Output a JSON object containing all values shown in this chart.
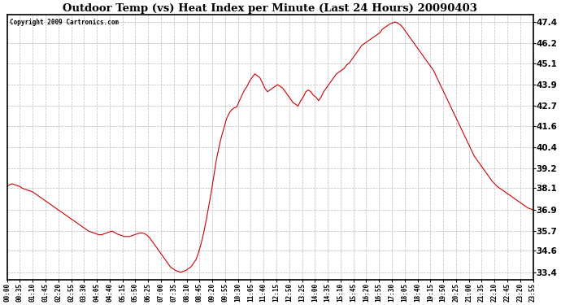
{
  "title": "Outdoor Temp (vs) Heat Index per Minute (Last 24 Hours) 20090403",
  "copyright": "Copyright 2009 Cartronics.com",
  "line_color": "#cc0000",
  "background_color": "#ffffff",
  "grid_color": "#bbbbbb",
  "yticks": [
    33.4,
    34.6,
    35.7,
    36.9,
    38.1,
    39.2,
    40.4,
    41.6,
    42.7,
    43.9,
    45.1,
    46.2,
    47.4
  ],
  "ylim": [
    33.0,
    47.8
  ],
  "x_labels": [
    "00:00",
    "00:35",
    "01:10",
    "01:45",
    "02:20",
    "02:55",
    "03:30",
    "04:05",
    "04:40",
    "05:15",
    "05:50",
    "06:25",
    "07:00",
    "07:35",
    "08:10",
    "08:45",
    "09:20",
    "09:55",
    "10:30",
    "11:05",
    "11:40",
    "12:15",
    "12:50",
    "13:25",
    "14:00",
    "14:35",
    "15:10",
    "15:45",
    "16:20",
    "16:55",
    "17:30",
    "18:05",
    "18:40",
    "19:15",
    "19:50",
    "20:25",
    "21:00",
    "21:35",
    "22:10",
    "22:45",
    "23:20",
    "23:55"
  ],
  "curve": [
    38.2,
    38.3,
    38.35,
    38.3,
    38.25,
    38.2,
    38.1,
    38.05,
    38.0,
    37.95,
    37.9,
    37.8,
    37.7,
    37.6,
    37.5,
    37.4,
    37.3,
    37.2,
    37.1,
    37.0,
    36.9,
    36.8,
    36.7,
    36.6,
    36.5,
    36.4,
    36.3,
    36.2,
    36.1,
    36.0,
    35.9,
    35.8,
    35.7,
    35.65,
    35.6,
    35.55,
    35.5,
    35.5,
    35.55,
    35.6,
    35.65,
    35.7,
    35.65,
    35.55,
    35.5,
    35.45,
    35.4,
    35.4,
    35.4,
    35.45,
    35.5,
    35.55,
    35.6,
    35.6,
    35.55,
    35.45,
    35.3,
    35.1,
    34.9,
    34.7,
    34.5,
    34.3,
    34.1,
    33.9,
    33.7,
    33.6,
    33.5,
    33.45,
    33.4,
    33.45,
    33.5,
    33.6,
    33.7,
    33.9,
    34.1,
    34.5,
    35.0,
    35.6,
    36.3,
    37.1,
    37.9,
    38.8,
    39.7,
    40.4,
    41.0,
    41.5,
    42.0,
    42.3,
    42.5,
    42.6,
    42.65,
    43.0,
    43.3,
    43.6,
    43.8,
    44.1,
    44.3,
    44.5,
    44.4,
    44.3,
    44.0,
    43.7,
    43.5,
    43.6,
    43.7,
    43.8,
    43.9,
    43.8,
    43.7,
    43.5,
    43.3,
    43.1,
    42.9,
    42.8,
    42.7,
    43.0,
    43.2,
    43.5,
    43.6,
    43.5,
    43.3,
    43.2,
    43.0,
    43.2,
    43.5,
    43.7,
    43.9,
    44.1,
    44.3,
    44.5,
    44.6,
    44.7,
    44.8,
    45.0,
    45.1,
    45.3,
    45.5,
    45.7,
    45.9,
    46.1,
    46.2,
    46.3,
    46.4,
    46.5,
    46.6,
    46.7,
    46.8,
    47.0,
    47.1,
    47.2,
    47.3,
    47.35,
    47.4,
    47.35,
    47.25,
    47.1,
    46.9,
    46.7,
    46.5,
    46.3,
    46.1,
    45.9,
    45.7,
    45.5,
    45.3,
    45.1,
    44.9,
    44.7,
    44.4,
    44.1,
    43.8,
    43.5,
    43.2,
    42.9,
    42.6,
    42.3,
    42.0,
    41.7,
    41.4,
    41.1,
    40.8,
    40.5,
    40.2,
    39.9,
    39.7,
    39.5,
    39.3,
    39.1,
    38.9,
    38.7,
    38.5,
    38.35,
    38.2,
    38.1,
    38.0,
    37.9,
    37.8,
    37.7,
    37.6,
    37.5,
    37.4,
    37.3,
    37.2,
    37.1,
    37.0,
    36.95,
    36.9
  ]
}
